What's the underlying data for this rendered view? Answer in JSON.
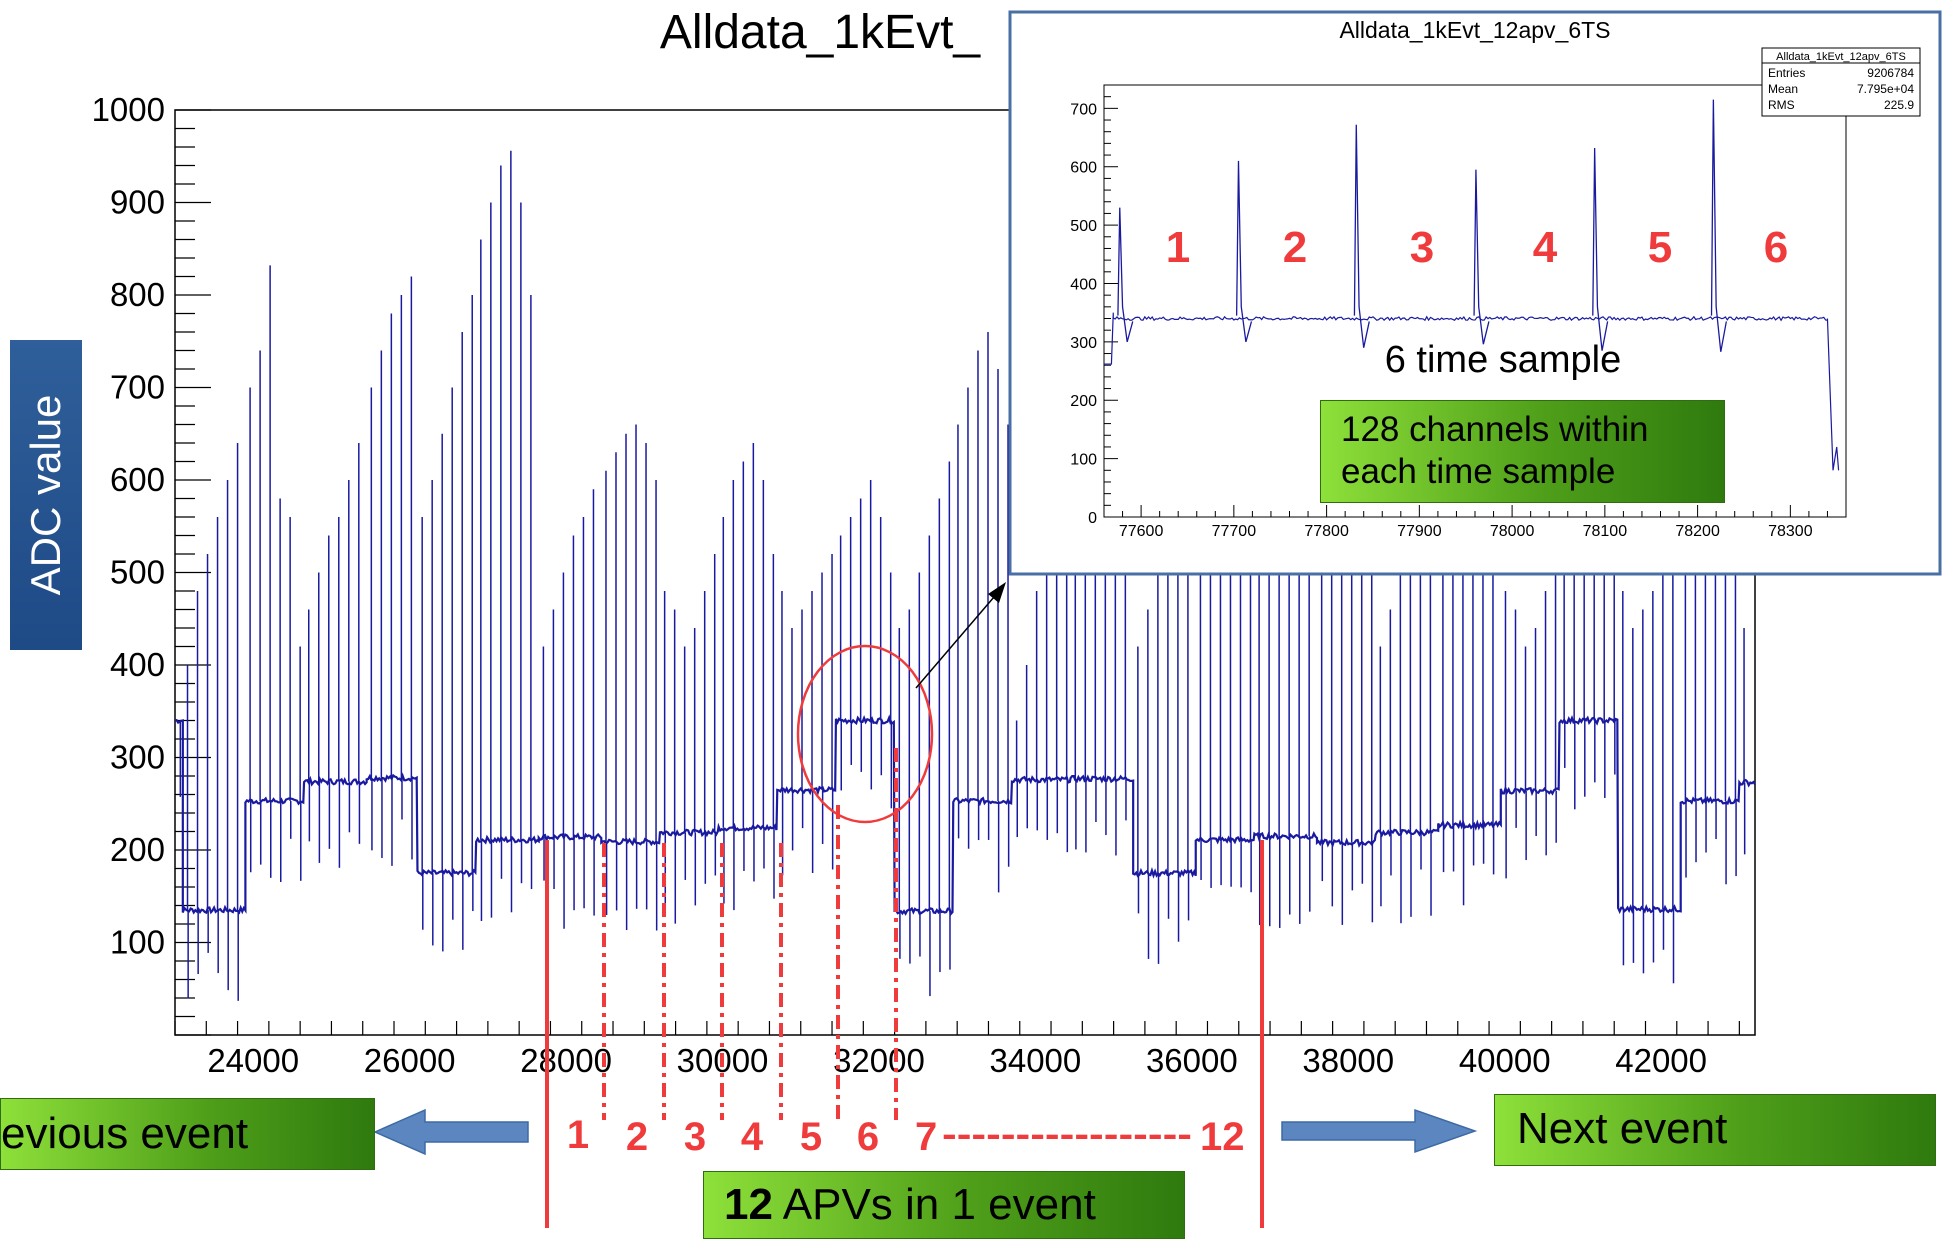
{
  "main_title": "Alldata_1kEvt_",
  "ylabel": "ADC value",
  "colors": {
    "trace": "#1a1aa0",
    "annotation": "#ef3b3b",
    "green": "#5fb82a",
    "blue_box": "#22508d"
  },
  "chart_data": [
    {
      "type": "line",
      "title": "Alldata_1kEvt_",
      "xlabel": "",
      "ylabel": "ADC value",
      "xlim": [
        23000,
        43200
      ],
      "ylim": [
        0,
        1000
      ],
      "x_ticks": [
        "24000",
        "26000",
        "28000",
        "30000",
        "32000",
        "34000",
        "36000",
        "38000",
        "40000",
        "42000"
      ],
      "y_ticks": [
        "100",
        "200",
        "300",
        "400",
        "500",
        "600",
        "700",
        "800",
        "900",
        "1000"
      ],
      "apv_segments": [
        {
          "x0": 23000,
          "x1": 23100,
          "level": 340
        },
        {
          "x0": 23100,
          "x1": 23900,
          "level": 135
        },
        {
          "x0": 23900,
          "x1": 24650,
          "level": 253
        },
        {
          "x0": 24650,
          "x1": 25450,
          "level": 274
        },
        {
          "x0": 25450,
          "x1": 26100,
          "level": 278
        },
        {
          "x0": 26100,
          "x1": 26850,
          "level": 175
        },
        {
          "x0": 26850,
          "x1": 27650,
          "level": 211
        },
        {
          "x0": 27650,
          "x1": 28450,
          "level": 214
        },
        {
          "x0": 28450,
          "x1": 29200,
          "level": 209
        },
        {
          "x0": 29200,
          "x1": 29950,
          "level": 219
        },
        {
          "x0": 29950,
          "x1": 30700,
          "level": 224
        },
        {
          "x0": 30700,
          "x1": 31450,
          "level": 265
        },
        {
          "x0": 31450,
          "x1": 32200,
          "level": 340
        },
        {
          "x0": 32200,
          "x1": 32950,
          "level": 134
        },
        {
          "x0": 32950,
          "x1": 33700,
          "level": 253
        },
        {
          "x0": 33700,
          "x1": 34450,
          "level": 276
        },
        {
          "x0": 34450,
          "x1": 35250,
          "level": 277
        },
        {
          "x0": 35250,
          "x1": 36050,
          "level": 175
        },
        {
          "x0": 36050,
          "x1": 36800,
          "level": 211
        },
        {
          "x0": 36800,
          "x1": 37600,
          "level": 215
        },
        {
          "x0": 37600,
          "x1": 38350,
          "level": 208
        },
        {
          "x0": 38350,
          "x1": 39150,
          "level": 219
        },
        {
          "x0": 39150,
          "x1": 39950,
          "level": 227
        },
        {
          "x0": 39950,
          "x1": 40700,
          "level": 264
        },
        {
          "x0": 40700,
          "x1": 41450,
          "level": 340
        },
        {
          "x0": 41450,
          "x1": 42250,
          "level": 136
        },
        {
          "x0": 42250,
          "x1": 43000,
          "level": 253
        },
        {
          "x0": 43000,
          "x1": 43200,
          "level": 273
        }
      ],
      "spike_peaks": [
        340,
        400,
        480,
        520,
        560,
        600,
        640,
        700,
        740,
        832,
        580,
        560,
        420,
        460,
        500,
        540,
        560,
        600,
        640,
        700,
        740,
        780,
        800,
        820,
        560,
        600,
        650,
        700,
        760,
        800,
        860,
        900,
        940,
        956,
        900,
        800,
        420,
        460,
        500,
        540,
        560,
        590,
        610,
        630,
        650,
        660,
        640,
        600,
        480,
        460,
        420,
        440,
        480,
        520,
        560,
        600,
        620,
        640,
        600,
        520,
        480,
        440,
        460,
        480,
        500,
        520,
        540,
        560,
        580,
        600,
        560,
        500,
        440,
        460,
        500,
        540,
        580,
        620,
        660,
        700,
        740,
        760,
        720,
        660
      ]
    },
    {
      "type": "line",
      "title": "Alldata_1kEvt_12apv_6TS",
      "xlim": [
        77560,
        78360
      ],
      "ylim": [
        0,
        740
      ],
      "x_ticks": [
        "77600",
        "77700",
        "77800",
        "77900",
        "78000",
        "78100",
        "78200",
        "78300"
      ],
      "y_ticks": [
        "0",
        "100",
        "200",
        "300",
        "400",
        "500",
        "600",
        "700"
      ],
      "baseline": 340,
      "spikes": [
        {
          "x": 77577,
          "peak": 530,
          "dip": 300
        },
        {
          "x": 77705,
          "peak": 610,
          "dip": 300
        },
        {
          "x": 77832,
          "peak": 672,
          "dip": 290
        },
        {
          "x": 77961,
          "peak": 595,
          "dip": 296
        },
        {
          "x": 78089,
          "peak": 632,
          "dip": 285
        },
        {
          "x": 78217,
          "peak": 715,
          "dip": 283
        }
      ],
      "stats": [
        {
          "label": "Entries",
          "value": "9206784"
        },
        {
          "label": "Mean",
          "value": "7.795e+04"
        },
        {
          "label": "RMS",
          "value": "225.9"
        }
      ],
      "stats_title": "Alldata_1kEvt_12apv_6TS"
    }
  ],
  "annotations": {
    "inset_numbers": [
      "1",
      "2",
      "3",
      "4",
      "5",
      "6"
    ],
    "inset_caption": "6 time sample",
    "inset_box_line1": "128 channels within",
    "inset_box_line2": "each time sample",
    "apv_numbers": [
      "1",
      "2",
      "3",
      "4",
      "5",
      "6"
    ],
    "apv_range_start": "7",
    "apv_range_dashes": "-----------------",
    "apv_range_end": "12",
    "previous_event": "evious event",
    "next_event": "Next event",
    "apvs_bold": "12",
    "apvs_rest": " APVs in 1 event"
  }
}
